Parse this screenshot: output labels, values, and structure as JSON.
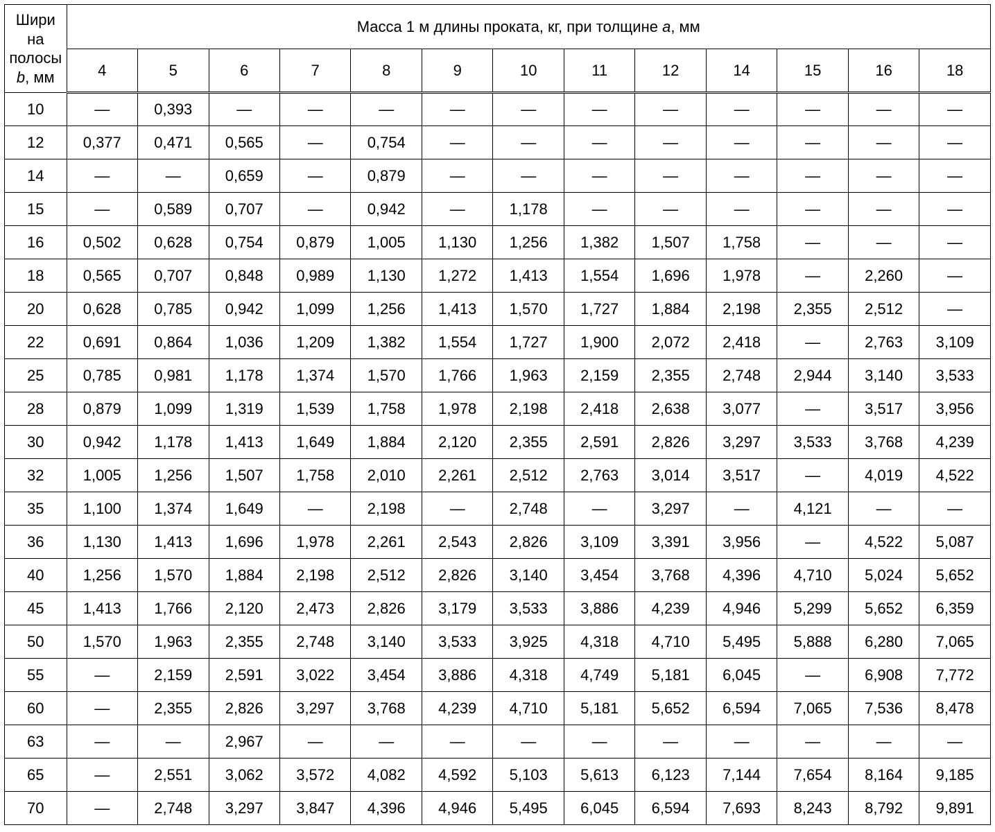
{
  "table": {
    "type": "table",
    "background_color": "#ffffff",
    "text_color": "#000000",
    "font_family": "Arial",
    "font_size_pt": 16,
    "border_color": "#000000",
    "row_header_label_lines": [
      "Шири",
      "на",
      "полосы"
    ],
    "row_header_unit_prefix_italic": "b",
    "row_header_unit_suffix": ", мм",
    "spanning_header_prefix": "Масса 1 м длины проката, кг, при толщине ",
    "spanning_header_italic": "а",
    "spanning_header_suffix": ", мм",
    "columns": [
      "4",
      "5",
      "6",
      "7",
      "8",
      "9",
      "10",
      "11",
      "12",
      "14",
      "15",
      "16",
      "18"
    ],
    "row_labels": [
      "10",
      "12",
      "14",
      "15",
      "16",
      "18",
      "20",
      "22",
      "25",
      "28",
      "30",
      "32",
      "35",
      "36",
      "40",
      "45",
      "50",
      "55",
      "60",
      "63",
      "65",
      "70"
    ],
    "dash": "—",
    "rows": [
      [
        "—",
        "0,393",
        "—",
        "—",
        "—",
        "—",
        "—",
        "—",
        "—",
        "—",
        "—",
        "—",
        "—"
      ],
      [
        "0,377",
        "0,471",
        "0,565",
        "—",
        "0,754",
        "—",
        "—",
        "—",
        "—",
        "—",
        "—",
        "—",
        "—"
      ],
      [
        "—",
        "—",
        "0,659",
        "—",
        "0,879",
        "—",
        "—",
        "—",
        "—",
        "—",
        "—",
        "—",
        "—"
      ],
      [
        "—",
        "0,589",
        "0,707",
        "—",
        "0,942",
        "—",
        "1,178",
        "—",
        "—",
        "—",
        "—",
        "—",
        "—"
      ],
      [
        "0,502",
        "0,628",
        "0,754",
        "0,879",
        "1,005",
        "1,130",
        "1,256",
        "1,382",
        "1,507",
        "1,758",
        "—",
        "—",
        "—"
      ],
      [
        "0,565",
        "0,707",
        "0,848",
        "0,989",
        "1,130",
        "1,272",
        "1,413",
        "1,554",
        "1,696",
        "1,978",
        "—",
        "2,260",
        "—"
      ],
      [
        "0,628",
        "0,785",
        "0,942",
        "1,099",
        "1,256",
        "1,413",
        "1,570",
        "1,727",
        "1,884",
        "2,198",
        "2,355",
        "2,512",
        "—"
      ],
      [
        "0,691",
        "0,864",
        "1,036",
        "1,209",
        "1,382",
        "1,554",
        "1,727",
        "1,900",
        "2,072",
        "2,418",
        "—",
        "2,763",
        "3,109"
      ],
      [
        "0,785",
        "0,981",
        "1,178",
        "1,374",
        "1,570",
        "1,766",
        "1,963",
        "2,159",
        "2,355",
        "2,748",
        "2,944",
        "3,140",
        "3,533"
      ],
      [
        "0,879",
        "1,099",
        "1,319",
        "1,539",
        "1,758",
        "1,978",
        "2,198",
        "2,418",
        "2,638",
        "3,077",
        "—",
        "3,517",
        "3,956"
      ],
      [
        "0,942",
        "1,178",
        "1,413",
        "1,649",
        "1,884",
        "2,120",
        "2,355",
        "2,591",
        "2,826",
        "3,297",
        "3,533",
        "3,768",
        "4,239"
      ],
      [
        "1,005",
        "1,256",
        "1,507",
        "1,758",
        "2,010",
        "2,261",
        "2,512",
        "2,763",
        "3,014",
        "3,517",
        "—",
        "4,019",
        "4,522"
      ],
      [
        "1,100",
        "1,374",
        "1,649",
        "—",
        "2,198",
        "—",
        "2,748",
        "—",
        "3,297",
        "—",
        "4,121",
        "—",
        "—"
      ],
      [
        "1,130",
        "1,413",
        "1,696",
        "1,978",
        "2,261",
        "2,543",
        "2,826",
        "3,109",
        "3,391",
        "3,956",
        "—",
        "4,522",
        "5,087"
      ],
      [
        "1,256",
        "1,570",
        "1,884",
        "2,198",
        "2,512",
        "2,826",
        "3,140",
        "3,454",
        "3,768",
        "4,396",
        "4,710",
        "5,024",
        "5,652"
      ],
      [
        "1,413",
        "1,766",
        "2,120",
        "2,473",
        "2,826",
        "3,179",
        "3,533",
        "3,886",
        "4,239",
        "4,946",
        "5,299",
        "5,652",
        "6,359"
      ],
      [
        "1,570",
        "1,963",
        "2,355",
        "2,748",
        "3,140",
        "3,533",
        "3,925",
        "4,318",
        "4,710",
        "5,495",
        "5,888",
        "6,280",
        "7,065"
      ],
      [
        "—",
        "2,159",
        "2,591",
        "3,022",
        "3,454",
        "3,886",
        "4,318",
        "4,749",
        "5,181",
        "6,045",
        "—",
        "6,908",
        "7,772"
      ],
      [
        "—",
        "2,355",
        "2,826",
        "3,297",
        "3,768",
        "4,239",
        "4,710",
        "5,181",
        "5,652",
        "6,594",
        "7,065",
        "7,536",
        "8,478"
      ],
      [
        "—",
        "—",
        "2,967",
        "—",
        "—",
        "—",
        "—",
        "—",
        "—",
        "—",
        "—",
        "—",
        "—"
      ],
      [
        "—",
        "2,551",
        "3,062",
        "3,572",
        "4,082",
        "4,592",
        "5,103",
        "5,613",
        "6,123",
        "7,144",
        "7,654",
        "8,164",
        "9,185"
      ],
      [
        "—",
        "2,748",
        "3,297",
        "3,847",
        "4,396",
        "4,946",
        "5,495",
        "6,045",
        "6,594",
        "7,693",
        "8,243",
        "8,792",
        "9,891"
      ]
    ]
  }
}
